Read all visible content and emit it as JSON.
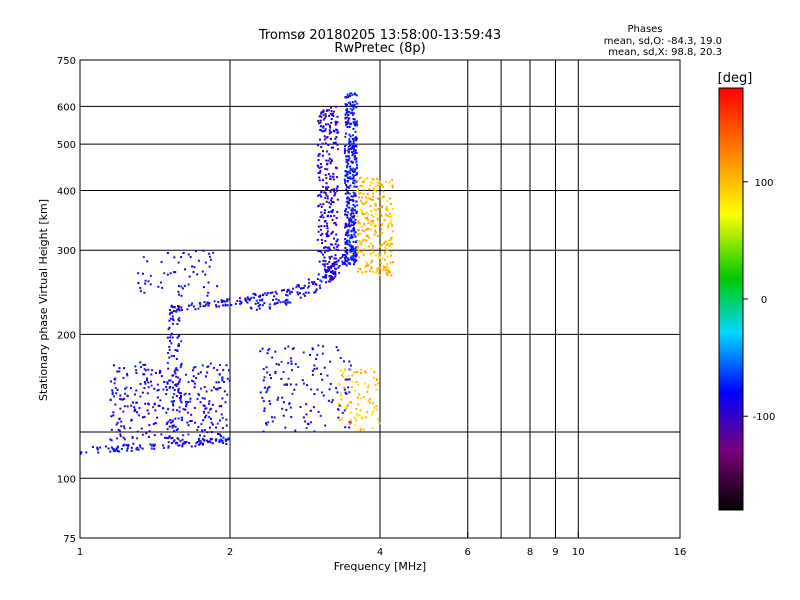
{
  "header": {
    "title_line1": "Tromsø 20180205 13:58:00-13:59:43",
    "title_line2": "RwPretec (8p)",
    "phases_title": "Phases",
    "stats_o": "mean, sd,O: -84.3, 19.0",
    "stats_x": "mean, sd,X:  98.8, 20.3"
  },
  "colorbar": {
    "unit_label": "[deg]",
    "tick_labels": [
      "100",
      "0",
      "-100"
    ],
    "tick_values": [
      100,
      0,
      -100
    ],
    "range": [
      -180,
      180
    ]
  },
  "chart_data": {
    "type": "scatter",
    "title": "Tromsø 20180205 13:58:00-13:59:43 RwPretec (8p)",
    "xlabel": "Frequency [MHz]",
    "ylabel": "Stationary phase Virtual Height [km]",
    "x_scale": "log",
    "y_scale": "log",
    "xlim": [
      1,
      16
    ],
    "ylim": [
      75,
      750
    ],
    "x_ticks": [
      1,
      2,
      4,
      6,
      8,
      9,
      10,
      16
    ],
    "x_tick_labels": [
      "1",
      "2",
      "4",
      "6",
      "8",
      "9",
      "10",
      "16"
    ],
    "y_ticks": [
      75,
      100,
      200,
      300,
      400,
      500,
      600,
      750
    ],
    "y_tick_labels": [
      "75",
      "100",
      "200",
      "300",
      "400",
      "500",
      "600",
      "750"
    ],
    "x_minor_gridlines": [
      7
    ],
    "y_minor_gridlines": [
      125
    ],
    "grid": true,
    "color_variable": "phase",
    "color_unit": "deg",
    "color_range": [
      -180,
      180
    ],
    "clusters": [
      {
        "desc": "E-region O trace",
        "f": [
          1.0,
          2.0
        ],
        "h": [
          112,
          122
        ],
        "phase": -85,
        "n": 110,
        "spread": "band"
      },
      {
        "desc": "E-region O scatter",
        "f": [
          1.15,
          2.0
        ],
        "h": [
          120,
          175
        ],
        "phase": -85,
        "n": 320,
        "spread": "box"
      },
      {
        "desc": "E-region O column",
        "f": [
          1.5,
          1.6
        ],
        "h": [
          120,
          230
        ],
        "phase": -85,
        "n": 90,
        "spread": "box"
      },
      {
        "desc": "F-region O low trace",
        "f": [
          1.5,
          2.2
        ],
        "h": [
          222,
          240
        ],
        "phase": -85,
        "n": 70,
        "spread": "band"
      },
      {
        "desc": "F-region O scatter low",
        "f": [
          1.3,
          1.9
        ],
        "h": [
          240,
          300
        ],
        "phase": -85,
        "n": 60,
        "spread": "box"
      },
      {
        "desc": "F-region O trace",
        "f": [
          2.2,
          3.6
        ],
        "h": [
          232,
          300
        ],
        "phase": -85,
        "n": 170,
        "spread": "curve"
      },
      {
        "desc": "F-region O cusp",
        "f": [
          3.0,
          3.3
        ],
        "h": [
          260,
          600
        ],
        "phase": -95,
        "n": 280,
        "spread": "box"
      },
      {
        "desc": "F-region O cusp 2",
        "f": [
          3.4,
          3.6
        ],
        "h": [
          280,
          640
        ],
        "phase": -80,
        "n": 380,
        "spread": "box"
      },
      {
        "desc": "F-region X trace",
        "f": [
          3.6,
          4.25
        ],
        "h": [
          265,
          430
        ],
        "phase": 100,
        "n": 260,
        "spread": "box"
      },
      {
        "desc": "E-region second O scatter",
        "f": [
          2.3,
          3.5
        ],
        "h": [
          125,
          190
        ],
        "phase": -85,
        "n": 150,
        "spread": "box"
      },
      {
        "desc": "E-region X scatter",
        "f": [
          3.3,
          4.0
        ],
        "h": [
          125,
          170
        ],
        "phase": 95,
        "n": 90,
        "spread": "box"
      }
    ]
  }
}
